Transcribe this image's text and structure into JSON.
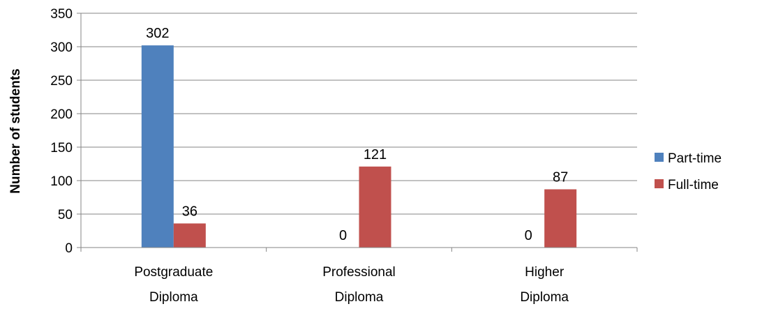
{
  "chart_data": {
    "type": "bar",
    "categories": [
      [
        "Postgraduate",
        "Diploma"
      ],
      [
        "Professional",
        "Diploma"
      ],
      [
        "Higher",
        "Diploma"
      ]
    ],
    "series": [
      {
        "name": "Part-time",
        "color": "#4F81BD",
        "values": [
          302,
          0,
          0
        ]
      },
      {
        "name": "Full-time",
        "color": "#C0504D",
        "values": [
          36,
          121,
          87
        ]
      }
    ],
    "ylabel": "Number of students",
    "xlabel": "",
    "ylim": [
      0,
      350
    ],
    "yticks": [
      0,
      50,
      100,
      150,
      200,
      250,
      300,
      350
    ],
    "grid": true,
    "legend_position": "right"
  }
}
